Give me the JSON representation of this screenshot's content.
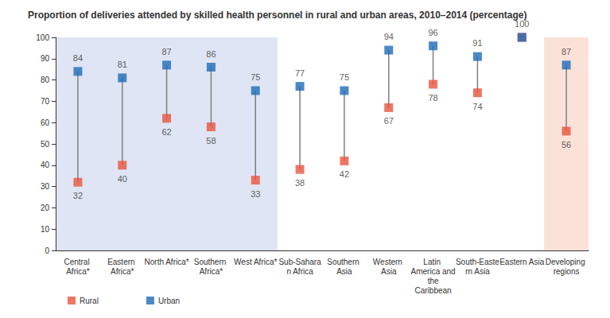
{
  "chart_data": {
    "type": "dumbbell",
    "title": "Proportion of deliveries attended by skilled health personnel in rural and urban areas, 2010–2014 (percentage)",
    "categories": [
      "Central Africa*",
      "Eastern Africa*",
      "North Africa*",
      "Southern Africa*",
      "West Africa*",
      "Sub-Saharan Africa",
      "Southern Asia",
      "Western Asia",
      "Latin America and the Caribbean",
      "South-Eastern Asia",
      "Eastern Asia",
      "Developing regions"
    ],
    "series": [
      {
        "name": "Rural",
        "color": "#e8553e",
        "marker": "square",
        "values": [
          32,
          40,
          62,
          58,
          33,
          38,
          42,
          67,
          78,
          74,
          100,
          56
        ],
        "value_labels": [
          "32",
          "40",
          "62",
          "58",
          "33",
          "38",
          "42",
          "67",
          "78",
          "74",
          null,
          "56"
        ]
      },
      {
        "name": "Urban",
        "color": "#1e6bb8",
        "marker": "square",
        "values": [
          84,
          81,
          87,
          86,
          75,
          77,
          75,
          94,
          96,
          91,
          100,
          87
        ]
      }
    ],
    "ylim": [
      0,
      100
    ],
    "yticks": [
      0,
      10,
      20,
      30,
      40,
      50,
      60,
      70,
      80,
      90,
      100
    ],
    "grid": false,
    "legend": "bottom-left",
    "data_labels": true
  }
}
